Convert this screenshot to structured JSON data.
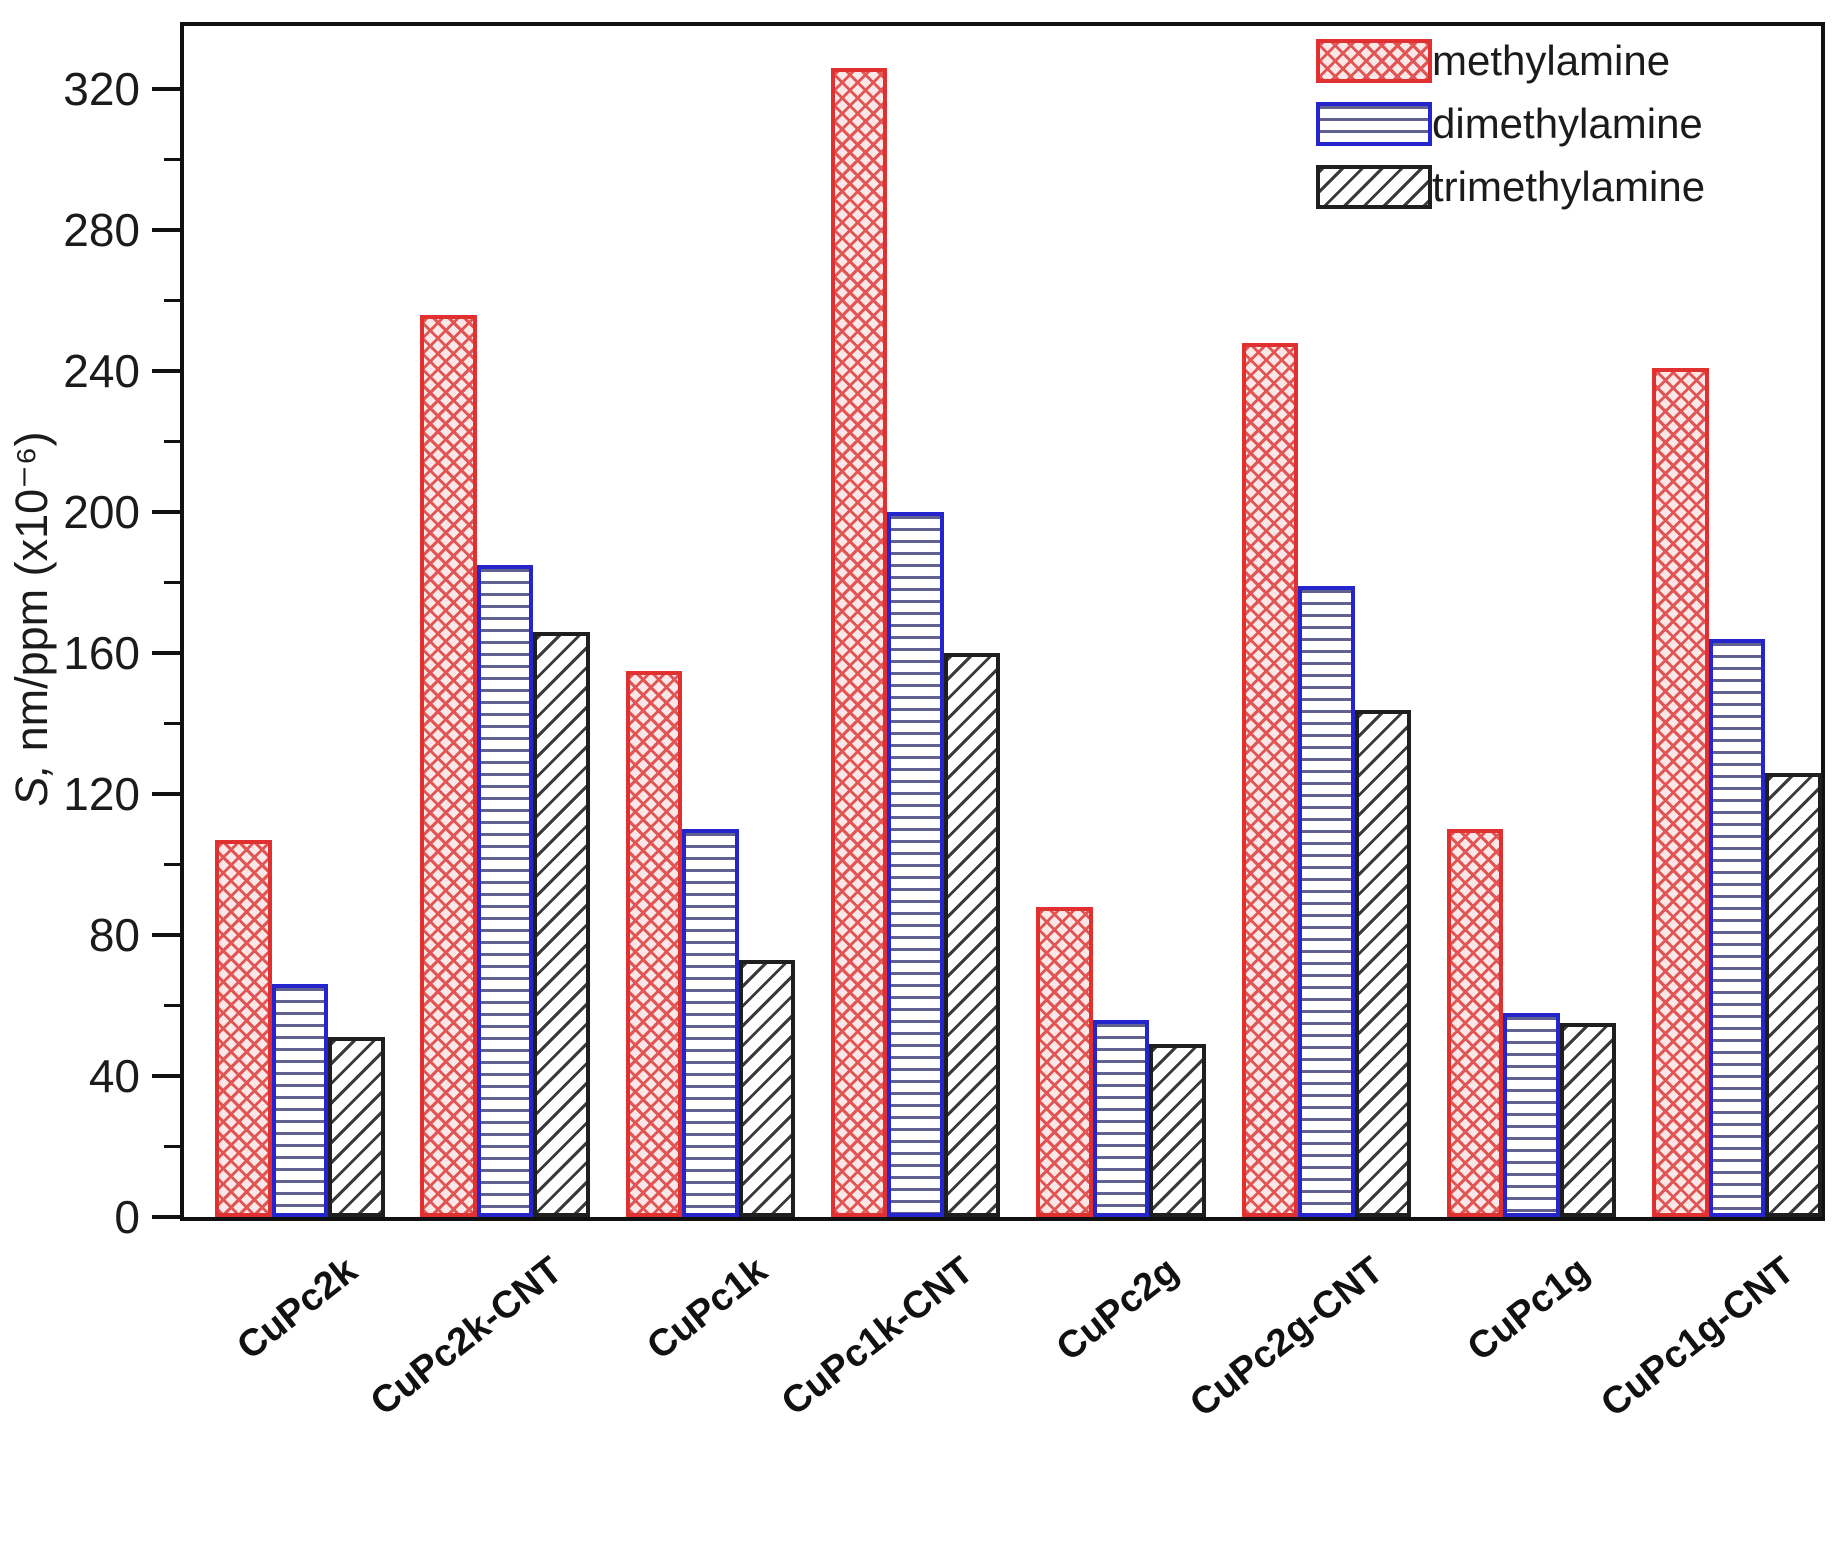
{
  "chart_data": {
    "type": "bar",
    "title": "",
    "categories": [
      "CuPc2k",
      "CuPc2k-CNT",
      "CuPc1k",
      "CuPc1k-CNT",
      "CuPc2g",
      "CuPc2g-CNT",
      "CuPc1g",
      "CuPc1g-CNT"
    ],
    "series": [
      {
        "name": "methylamine",
        "values": [
          107,
          256,
          155,
          326,
          88,
          248,
          110,
          241
        ],
        "border": "#e03030",
        "line": "#e25555",
        "bg": "#fbe7e7",
        "pattern": "crosshatch"
      },
      {
        "name": "dimethylamine",
        "values": [
          66,
          185,
          110,
          200,
          56,
          179,
          58,
          164
        ],
        "border": "#2525cd",
        "line": "#61618f",
        "bg": "#ffffff",
        "pattern": "hlines"
      },
      {
        "name": "trimethylamine",
        "values": [
          51,
          166,
          73,
          160,
          49,
          144,
          55,
          126
        ],
        "border": "#1f1f1f",
        "line": "#3a3a3a",
        "bg": "#ffffff",
        "pattern": "diag"
      }
    ],
    "xlabel": "",
    "ylabel": "S, nm/ppm (x10⁻⁶)",
    "ylim": [
      0,
      338
    ],
    "yticks": [
      0,
      40,
      80,
      120,
      160,
      200,
      240,
      280,
      320
    ],
    "yticks_minor": [
      20,
      60,
      100,
      140,
      180,
      220,
      260,
      300
    ],
    "grid": false,
    "legend_position": "top-right"
  }
}
